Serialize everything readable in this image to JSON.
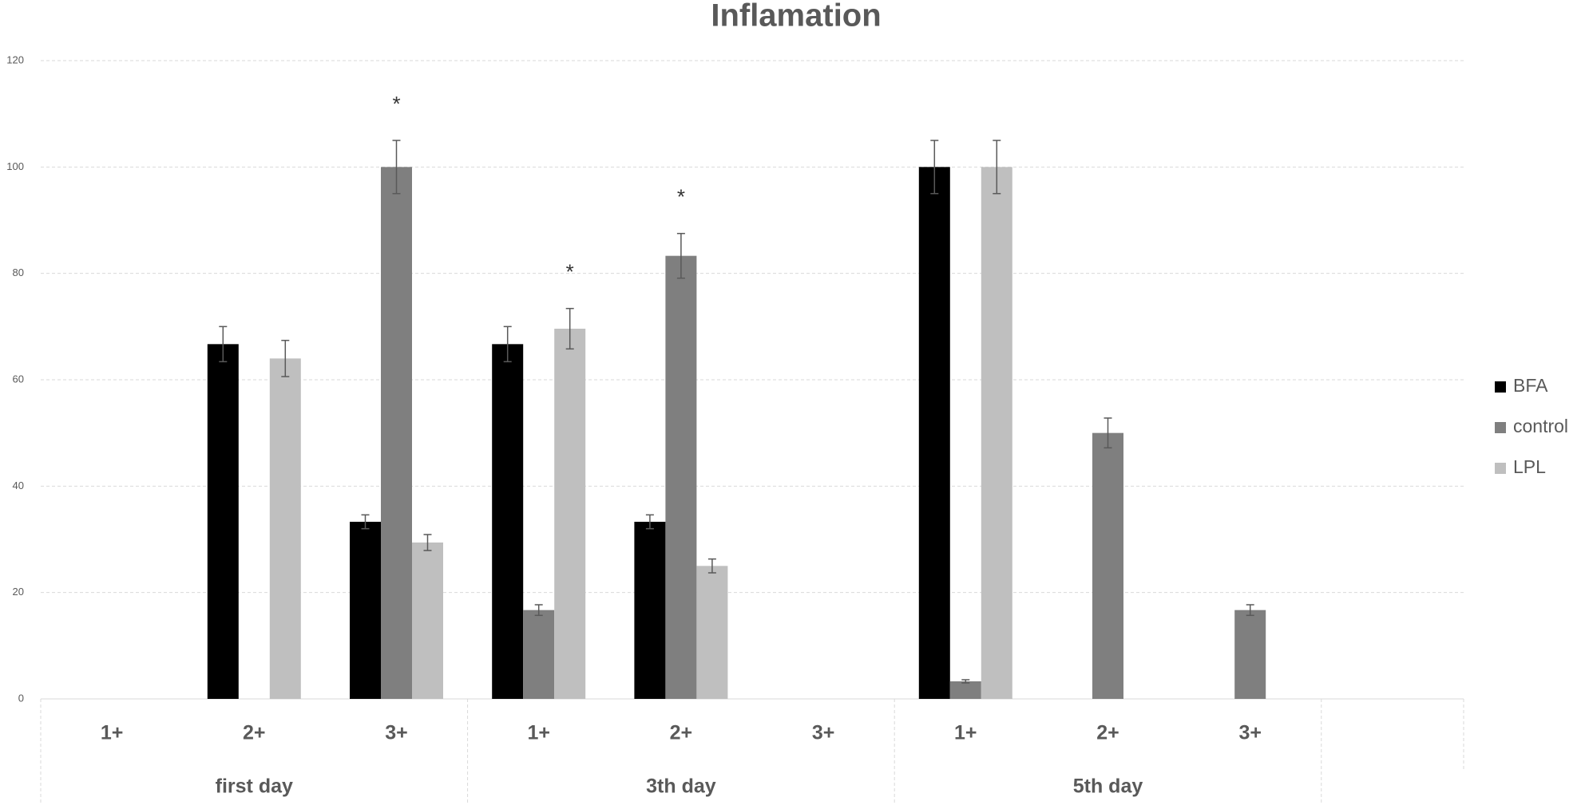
{
  "chart_data": {
    "type": "bar",
    "title": "Inflamation",
    "categories": [
      "1+",
      "2+",
      "3+",
      "1+",
      "2+",
      "3+",
      "1+",
      "2+",
      "3+",
      null
    ],
    "groups": [
      "first day",
      "first day",
      "first day",
      "3th day",
      "3th day",
      "3th day",
      "5th day",
      "5th day",
      "5th day",
      null
    ],
    "series": [
      {
        "name": "BFA",
        "color": "#000000",
        "values": [
          0,
          66.7,
          33.3,
          66.7,
          33.3,
          0,
          100,
          0,
          0,
          null
        ],
        "errors": [
          null,
          3.3,
          1.3,
          3.3,
          1.3,
          null,
          5,
          null,
          null,
          null
        ],
        "markers": [
          null,
          null,
          null,
          null,
          null,
          null,
          null,
          null,
          null,
          null
        ]
      },
      {
        "name": "control",
        "color": "#7f7f7f",
        "values": [
          0,
          0,
          100,
          16.7,
          83.3,
          0,
          3.3,
          50,
          16.7,
          null
        ],
        "errors": [
          null,
          null,
          5,
          1,
          4.2,
          null,
          0.3,
          2.8,
          1,
          null
        ],
        "markers": [
          null,
          null,
          "*",
          null,
          "*",
          null,
          null,
          null,
          null,
          null
        ]
      },
      {
        "name": "LPL",
        "color": "#bfbfbf",
        "values": [
          0,
          64,
          29.4,
          69.6,
          25,
          0,
          100,
          0,
          0,
          null
        ],
        "errors": [
          null,
          3.4,
          1.5,
          3.8,
          1.3,
          null,
          5,
          null,
          null,
          null
        ],
        "markers": [
          null,
          null,
          null,
          "*",
          null,
          null,
          null,
          null,
          null,
          null
        ]
      }
    ],
    "ylim": [
      0,
      120
    ],
    "yticks": [
      0,
      20,
      40,
      60,
      80,
      100,
      120
    ],
    "grid": true,
    "legend": "right"
  }
}
